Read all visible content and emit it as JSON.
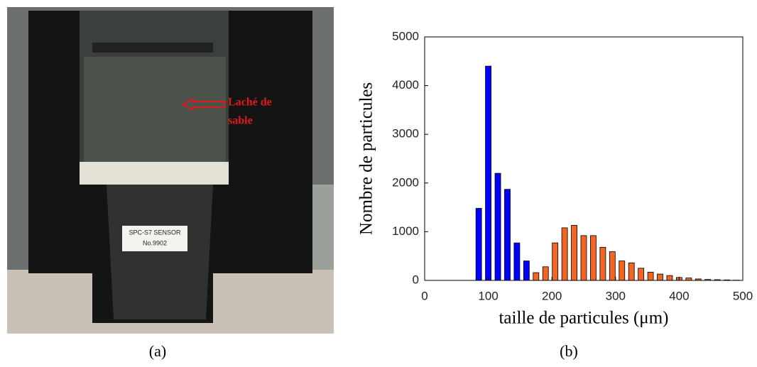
{
  "photo": {
    "annotation": [
      "Laché de",
      "sable"
    ],
    "sensor_label": [
      "SPC-S7  SENSOR",
      "No.9902"
    ]
  },
  "captions": [
    "(a)",
    "(b)"
  ],
  "chart_data": {
    "type": "bar",
    "xlabel": "taille de particules (μm)",
    "ylabel": "Nombre de particules",
    "xlim": [
      0,
      500
    ],
    "xticks": [
      0,
      100,
      200,
      300,
      400,
      500
    ],
    "ylim": [
      0,
      5000
    ],
    "yticks": [
      0,
      1000,
      2000,
      3000,
      4000,
      5000
    ],
    "series": [
      {
        "color": "#0000ff",
        "x": [
          85,
          100,
          115,
          130,
          145,
          160
        ],
        "values": [
          1480,
          4400,
          2200,
          1870,
          770,
          400
        ]
      },
      {
        "color": "#f26522",
        "x": [
          175,
          190,
          205,
          220,
          235,
          250,
          265,
          280,
          295,
          310,
          325,
          340,
          355,
          370,
          385,
          400,
          415,
          430,
          445,
          460,
          475,
          490
        ],
        "values": [
          160,
          280,
          770,
          1080,
          1130,
          920,
          920,
          680,
          590,
          400,
          360,
          250,
          170,
          130,
          100,
          60,
          50,
          30,
          20,
          15,
          10,
          5
        ]
      }
    ]
  }
}
